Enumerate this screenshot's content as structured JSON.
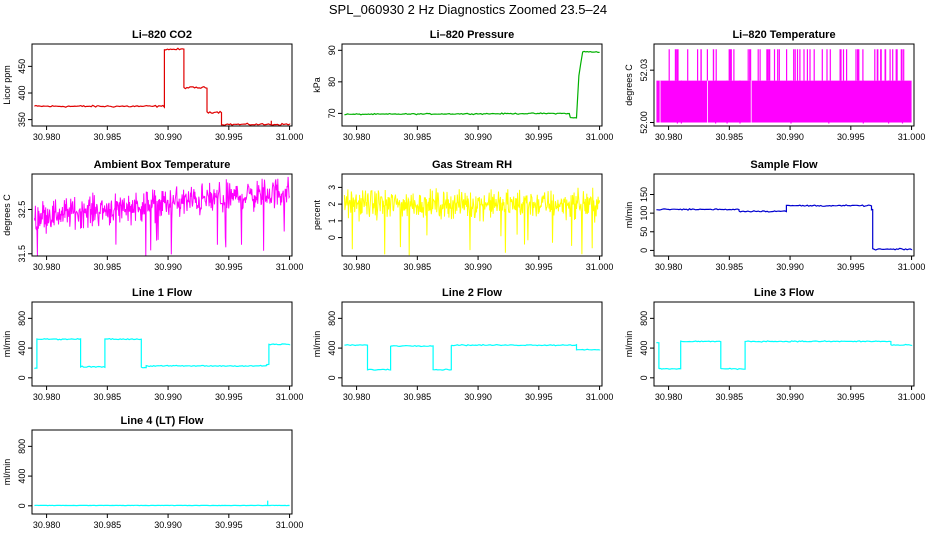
{
  "title": "SPL_060930  2 Hz Diagnostics Zoomed 23.5–24",
  "colors": {
    "co2": "#e00000",
    "pressure": "#00b000",
    "temperature": "#ff00ff",
    "ambient": "#ff00ff",
    "rh": "#ffff00",
    "sample_flow": "#0000d0",
    "line_flow": "#00ffff"
  },
  "chart_data": [
    {
      "type": "line",
      "title": "Li–820 CO2",
      "ylabel": "Licor ppm",
      "xlim": [
        30.9788,
        31.0002
      ],
      "ylim": [
        338,
        492
      ],
      "xticks": [
        30.98,
        30.985,
        30.99,
        30.995,
        31.0
      ],
      "xticklabels": [
        "30.980",
        "30.985",
        "30.990",
        "30.995",
        "31.000"
      ],
      "yticks": [
        350,
        400,
        450
      ],
      "yticklabels": [
        "350",
        "400",
        "450"
      ],
      "series": [
        {
          "color": "co2",
          "step": true,
          "noise": 1.5,
          "x": [
            30.979,
            30.9897,
            30.9913,
            30.9932,
            30.9944,
            31.0
          ],
          "y": [
            375,
            482,
            410,
            364,
            341,
            341
          ],
          "spikes": [
            [
              30.9985,
              348
            ]
          ]
        }
      ]
    },
    {
      "type": "line",
      "title": "Li–820 Pressure",
      "ylabel": "kPa",
      "xlim": [
        30.9788,
        31.0002
      ],
      "ylim": [
        66,
        92
      ],
      "xticks": [
        30.98,
        30.985,
        30.99,
        30.995,
        31.0
      ],
      "xticklabels": [
        "30.980",
        "30.985",
        "30.990",
        "30.995",
        "31.000"
      ],
      "yticks": [
        70,
        80,
        90
      ],
      "yticklabels": [
        "70",
        "80",
        "90"
      ],
      "series": [
        {
          "color": "pressure",
          "step": false,
          "noise": 0.15,
          "x": [
            30.979,
            30.9975,
            30.9976,
            30.9981,
            30.9983,
            30.9986,
            31.0
          ],
          "y": [
            69.7,
            70.0,
            68.6,
            68.6,
            82.0,
            89.5,
            89.5
          ]
        }
      ]
    },
    {
      "type": "line",
      "title": "Li–820 Temperature",
      "ylabel": "degrees C",
      "xlim": [
        30.9788,
        31.0002
      ],
      "ylim": [
        51.998,
        52.045
      ],
      "xticks": [
        30.98,
        30.985,
        30.99,
        30.995,
        31.0
      ],
      "xticklabels": [
        "30.980",
        "30.985",
        "30.990",
        "30.995",
        "31.000"
      ],
      "yticks": [
        52.0,
        52.03
      ],
      "yticklabels": [
        "52.00",
        "52.03"
      ],
      "series": [
        {
          "color": "temperature",
          "band": [
            52.0,
            52.024
          ],
          "high": 52.042,
          "x": [
            30.979,
            31.0
          ],
          "y": [
            52.0,
            52.024
          ]
        }
      ]
    },
    {
      "type": "line",
      "title": "Ambient Box Temperature",
      "ylabel": "degrees C",
      "xlim": [
        30.9788,
        31.0002
      ],
      "ylim": [
        31.45,
        33.3
      ],
      "xticks": [
        30.98,
        30.985,
        30.99,
        30.995,
        31.0
      ],
      "xticklabels": [
        "30.980",
        "30.985",
        "30.990",
        "30.995",
        "31.000"
      ],
      "yticks": [
        31.5,
        32.5
      ],
      "yticklabels": [
        "31.5",
        "32.5"
      ],
      "series": [
        {
          "color": "ambient",
          "noise_band": 0.55,
          "x": [
            30.979,
            31.0
          ],
          "y": [
            32.35,
            32.9
          ]
        }
      ]
    },
    {
      "type": "line",
      "title": "Gas Stream RH",
      "ylabel": "percent",
      "xlim": [
        30.9788,
        31.0002
      ],
      "ylim": [
        -1.1,
        3.8
      ],
      "xticks": [
        30.98,
        30.985,
        30.99,
        30.995,
        31.0
      ],
      "xticklabels": [
        "30.980",
        "30.985",
        "30.990",
        "30.995",
        "31.000"
      ],
      "yticks": [
        0,
        1,
        2,
        3
      ],
      "yticklabels": [
        "0",
        "1",
        "2",
        "3"
      ],
      "series": [
        {
          "color": "rh",
          "noise_band": 1.3,
          "x": [
            30.979,
            31.0
          ],
          "y": [
            2.0,
            2.0
          ]
        }
      ]
    },
    {
      "type": "line",
      "title": "Sample Flow",
      "ylabel": "ml/min",
      "xlim": [
        30.9788,
        31.0002
      ],
      "ylim": [
        -15,
        205
      ],
      "xticks": [
        30.98,
        30.985,
        30.99,
        30.995,
        31.0
      ],
      "xticklabels": [
        "30.980",
        "30.985",
        "30.990",
        "30.995",
        "31.000"
      ],
      "yticks": [
        0,
        50,
        100,
        150
      ],
      "yticklabels": [
        "0",
        "50",
        "100",
        "150"
      ],
      "series": [
        {
          "color": "sample_flow",
          "step": true,
          "noise": 1.5,
          "x": [
            30.979,
            30.9858,
            30.9897,
            30.9967,
            30.9968,
            31.0
          ],
          "y": [
            110,
            105,
            120,
            110,
            3,
            3
          ]
        }
      ]
    },
    {
      "type": "line",
      "title": "Line 1 Flow",
      "ylabel": "ml/min",
      "xlim": [
        30.9788,
        31.0002
      ],
      "ylim": [
        -110,
        1020
      ],
      "xticks": [
        30.98,
        30.985,
        30.99,
        30.995,
        31.0
      ],
      "xticklabels": [
        "30.980",
        "30.985",
        "30.990",
        "30.995",
        "31.000"
      ],
      "yticks": [
        0,
        400,
        800
      ],
      "yticklabels": [
        "0",
        "400",
        "800"
      ],
      "series": [
        {
          "color": "line_flow",
          "step": true,
          "noise": 6,
          "x": [
            30.979,
            30.9792,
            30.9828,
            30.9848,
            30.9878,
            30.9882,
            30.9981,
            30.9983,
            31.0
          ],
          "y": [
            130,
            520,
            150,
            520,
            140,
            160,
            180,
            450,
            450
          ]
        }
      ]
    },
    {
      "type": "line",
      "title": "Line 2 Flow",
      "ylabel": "ml/min",
      "xlim": [
        30.9788,
        31.0002
      ],
      "ylim": [
        -110,
        1020
      ],
      "xticks": [
        30.98,
        30.985,
        30.99,
        30.995,
        31.0
      ],
      "xticklabels": [
        "30.980",
        "30.985",
        "30.990",
        "30.995",
        "31.000"
      ],
      "yticks": [
        0,
        400,
        800
      ],
      "yticklabels": [
        "0",
        "400",
        "800"
      ],
      "series": [
        {
          "color": "line_flow",
          "step": true,
          "noise": 6,
          "x": [
            30.979,
            30.9809,
            30.9828,
            30.9863,
            30.9878,
            30.9981,
            31.0
          ],
          "y": [
            440,
            110,
            430,
            110,
            440,
            380,
            380
          ]
        }
      ]
    },
    {
      "type": "line",
      "title": "Line 3 Flow",
      "ylabel": "ml/min",
      "xlim": [
        30.9788,
        31.0002
      ],
      "ylim": [
        -110,
        1020
      ],
      "xticks": [
        30.98,
        30.985,
        30.99,
        30.995,
        31.0
      ],
      "xticklabels": [
        "30.980",
        "30.985",
        "30.990",
        "30.995",
        "31.000"
      ],
      "yticks": [
        0,
        400,
        800
      ],
      "yticklabels": [
        "0",
        "400",
        "800"
      ],
      "series": [
        {
          "color": "line_flow",
          "step": true,
          "noise": 6,
          "x": [
            30.979,
            30.9792,
            30.981,
            30.9843,
            30.9863,
            30.9983,
            31.0
          ],
          "y": [
            470,
            120,
            490,
            120,
            490,
            440,
            440
          ]
        }
      ]
    },
    {
      "type": "line",
      "title": "Line 4 (LT) Flow",
      "ylabel": "ml/min",
      "xlim": [
        30.9788,
        31.0002
      ],
      "ylim": [
        -110,
        1020
      ],
      "xticks": [
        30.98,
        30.985,
        30.99,
        30.995,
        31.0
      ],
      "xticklabels": [
        "30.980",
        "30.985",
        "30.990",
        "30.995",
        "31.000"
      ],
      "yticks": [
        0,
        400,
        800
      ],
      "yticklabels": [
        "0",
        "400",
        "800"
      ],
      "series": [
        {
          "color": "line_flow",
          "step": true,
          "noise": 2,
          "x": [
            30.979,
            31.0
          ],
          "y": [
            5,
            5
          ],
          "spikes": [
            [
              30.9982,
              70
            ]
          ]
        }
      ]
    }
  ]
}
